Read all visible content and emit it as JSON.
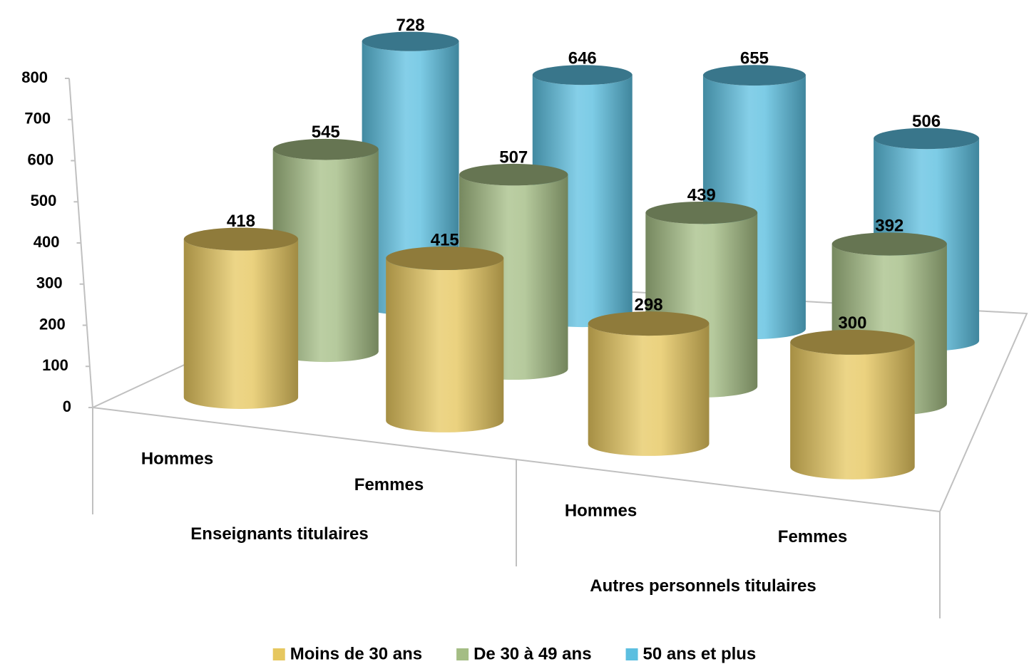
{
  "chart_data": {
    "type": "cylinder",
    "categories": [
      "Hommes",
      "Femmes",
      "Hommes",
      "Femmes"
    ],
    "category_groups": [
      "Enseignants titulaires",
      "Autres personnels titulaires"
    ],
    "series": [
      {
        "name": "Moins de 30 ans",
        "color": "#e6c75f",
        "values": [
          418,
          415,
          298,
          300
        ]
      },
      {
        "name": "De 30 à 49 ans",
        "color": "#a4bd84",
        "values": [
          545,
          507,
          439,
          392
        ]
      },
      {
        "name": "50 ans et plus",
        "color": "#5cbfe0",
        "values": [
          728,
          646,
          655,
          506
        ]
      }
    ],
    "ylim": [
      0,
      800
    ],
    "yticks": [
      0,
      100,
      200,
      300,
      400,
      500,
      600,
      700,
      800
    ],
    "legend": "bottom"
  }
}
